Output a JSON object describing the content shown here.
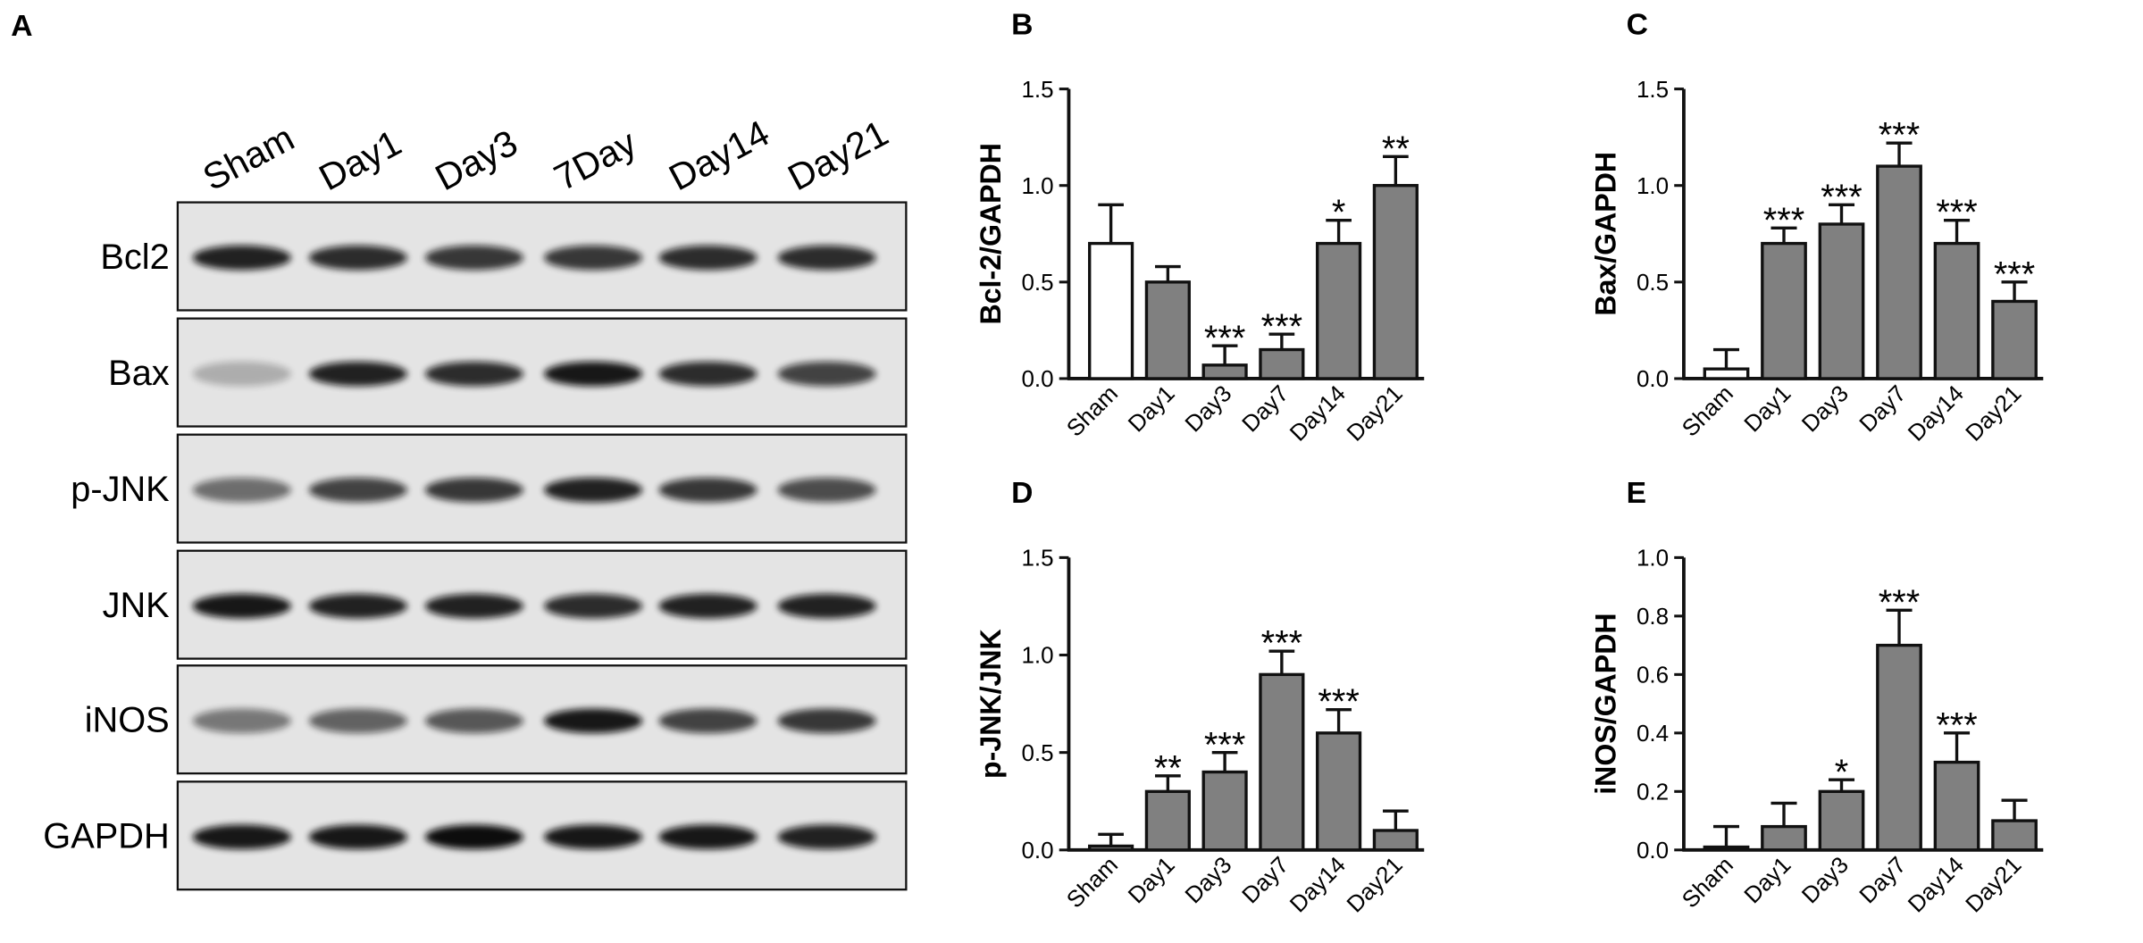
{
  "blot": {
    "panel": "A",
    "lanes": [
      "Sham",
      "Day1",
      "Day3",
      "7Day",
      "Day14",
      "Day21"
    ],
    "rows": [
      "Bcl2",
      "Bax",
      "p-JNK",
      "JNK",
      "iNOS",
      "GAPDH"
    ]
  },
  "chart_data": [
    {
      "type": "bar",
      "panel": "B",
      "ylabel": "Bcl-2/GAPDH",
      "categories": [
        "Sham",
        "Day1",
        "Day3",
        "Day7",
        "Day14",
        "Day21"
      ],
      "values": [
        0.7,
        0.5,
        0.07,
        0.15,
        0.7,
        1.0
      ],
      "errors": [
        0.2,
        0.08,
        0.1,
        0.08,
        0.12,
        0.15
      ],
      "colors": [
        "#ffffff",
        "#808080",
        "#808080",
        "#808080",
        "#808080",
        "#808080"
      ],
      "annotations": [
        null,
        null,
        "***",
        "***",
        "*",
        "**"
      ],
      "ylim": [
        0,
        1.5
      ],
      "yticks": [
        {
          "value": 0,
          "label": "0.0"
        },
        0.5,
        {
          "value": 1,
          "label": "1.0"
        },
        1.5
      ]
    },
    {
      "type": "bar",
      "panel": "C",
      "ylabel": "Bax/GAPDH",
      "categories": [
        "Sham",
        "Day1",
        "Day3",
        "Day7",
        "Day14",
        "Day21"
      ],
      "values": [
        0.05,
        0.7,
        0.8,
        1.1,
        0.7,
        0.4
      ],
      "errors": [
        0.1,
        0.08,
        0.1,
        0.12,
        0.12,
        0.1
      ],
      "colors": [
        "#ffffff",
        "#808080",
        "#808080",
        "#808080",
        "#808080",
        "#808080"
      ],
      "annotations": [
        null,
        "***",
        "***",
        "***",
        "***",
        "***"
      ],
      "ylim": [
        0,
        1.5
      ],
      "yticks": [
        {
          "value": 0,
          "label": "0.0"
        },
        0.5,
        {
          "value": 1,
          "label": "1.0"
        },
        1.5
      ]
    },
    {
      "type": "bar",
      "panel": "D",
      "ylabel": "p-JNK/JNK",
      "categories": [
        "Sham",
        "Day1",
        "Day3",
        "Day7",
        "Day14",
        "Day21"
      ],
      "values": [
        0.02,
        0.3,
        0.4,
        0.9,
        0.6,
        0.1
      ],
      "errors": [
        0.06,
        0.08,
        0.1,
        0.12,
        0.12,
        0.1
      ],
      "colors": [
        "#808080",
        "#808080",
        "#808080",
        "#808080",
        "#808080",
        "#808080"
      ],
      "annotations": [
        null,
        "**",
        "***",
        "***",
        "***",
        null
      ],
      "ylim": [
        0,
        1.5
      ],
      "yticks": [
        {
          "value": 0,
          "label": "0.0"
        },
        0.5,
        {
          "value": 1,
          "label": "1.0"
        },
        1.5
      ]
    },
    {
      "type": "bar",
      "panel": "E",
      "ylabel": "iNOS/GAPDH",
      "categories": [
        "Sham",
        "Day1",
        "Day3",
        "Day7",
        "Day14",
        "Day21"
      ],
      "values": [
        0.01,
        0.08,
        0.2,
        0.7,
        0.3,
        0.1
      ],
      "errors": [
        0.07,
        0.08,
        0.04,
        0.12,
        0.1,
        0.07
      ],
      "colors": [
        "#808080",
        "#808080",
        "#808080",
        "#808080",
        "#808080",
        "#808080"
      ],
      "annotations": [
        null,
        null,
        "*",
        "***",
        "***",
        null
      ],
      "ylim": [
        0,
        1
      ],
      "yticks": [
        {
          "value": 0,
          "label": "0.0"
        },
        0.2,
        0.4,
        0.6,
        0.8,
        {
          "value": 1,
          "label": "1.0"
        }
      ]
    }
  ]
}
